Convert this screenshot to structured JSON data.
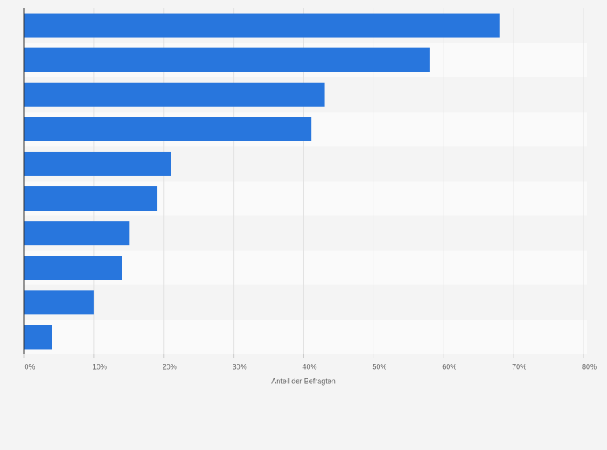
{
  "chart_data": {
    "type": "bar",
    "orientation": "horizontal",
    "xlabel": "Anteil der Befragten",
    "categories": [
      null,
      null,
      null,
      null,
      null,
      null,
      null,
      null,
      null,
      null
    ],
    "values": [
      68,
      58,
      43,
      41,
      21,
      19,
      15,
      14,
      10,
      4
    ],
    "color": "#2876dd",
    "xlim": [
      0,
      80
    ],
    "xticks": [
      {
        "value": 0,
        "label": "0%"
      },
      {
        "value": 10,
        "label": "10%"
      },
      {
        "value": 20,
        "label": "20%"
      },
      {
        "value": 30,
        "label": "30%"
      },
      {
        "value": 40,
        "label": "40%"
      },
      {
        "value": 50,
        "label": "50%"
      },
      {
        "value": 60,
        "label": "60%"
      },
      {
        "value": 70,
        "label": "70%"
      },
      {
        "value": 80,
        "label": "80%"
      }
    ],
    "grid": true
  }
}
